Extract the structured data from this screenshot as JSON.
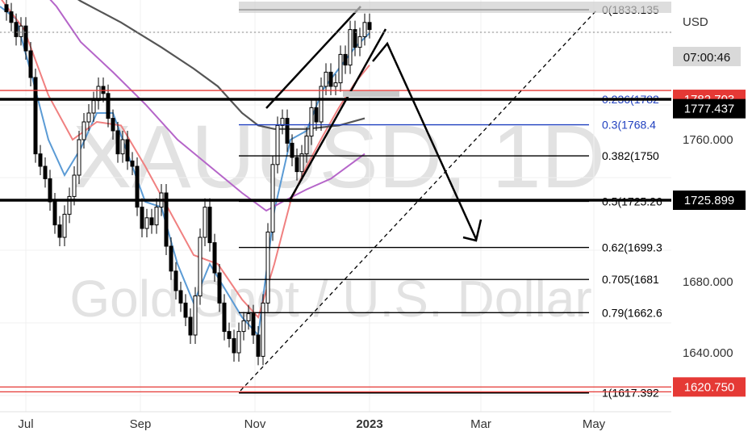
{
  "watermark": {
    "symbol": "XAUUSD, 1D",
    "description": "Gold Spot / U.S. Dollar"
  },
  "price_axis": {
    "currency": "USD",
    "countdown": "07:00:46"
  },
  "colors": {
    "candle": "#000000",
    "ma_blue": "#5b9bd5",
    "ma_red": "#f08080",
    "ma_purple": "#b565c9",
    "ma_gray": "#555555",
    "fib_blue": "#1f3fbf",
    "support_red": "#e53935",
    "dashed_trend": "#000000"
  },
  "chart_data": {
    "type": "candlestick",
    "title": "",
    "x_ticks": [
      "Jul",
      "Sep",
      "Nov",
      "2023",
      "Mar",
      "May"
    ],
    "y_ticks": [
      1640,
      1680,
      1760
    ],
    "ylim": [
      1612,
      1840
    ],
    "grid": true,
    "candles": [
      {
        "x": 8,
        "close": 1832
      },
      {
        "x": 14,
        "close": 1826
      },
      {
        "x": 20,
        "close": 1818
      },
      {
        "x": 26,
        "close": 1824
      },
      {
        "x": 32,
        "close": 1810
      },
      {
        "x": 38,
        "close": 1795
      },
      {
        "x": 44,
        "close": 1752
      },
      {
        "x": 50,
        "close": 1745
      },
      {
        "x": 56,
        "close": 1738
      },
      {
        "x": 62,
        "close": 1725
      },
      {
        "x": 68,
        "close": 1712
      },
      {
        "x": 74,
        "close": 1705
      },
      {
        "x": 80,
        "close": 1718
      },
      {
        "x": 86,
        "close": 1728
      },
      {
        "x": 92,
        "close": 1740
      },
      {
        "x": 98,
        "close": 1760
      },
      {
        "x": 104,
        "close": 1770
      },
      {
        "x": 110,
        "close": 1775
      },
      {
        "x": 116,
        "close": 1782
      },
      {
        "x": 122,
        "close": 1790
      },
      {
        "x": 128,
        "close": 1786
      },
      {
        "x": 134,
        "close": 1772
      },
      {
        "x": 140,
        "close": 1765
      },
      {
        "x": 146,
        "close": 1752
      },
      {
        "x": 152,
        "close": 1760
      },
      {
        "x": 158,
        "close": 1748
      },
      {
        "x": 164,
        "close": 1745
      },
      {
        "x": 170,
        "close": 1722
      },
      {
        "x": 176,
        "close": 1710
      },
      {
        "x": 182,
        "close": 1716
      },
      {
        "x": 188,
        "close": 1712
      },
      {
        "x": 194,
        "close": 1722
      },
      {
        "x": 200,
        "close": 1730
      },
      {
        "x": 206,
        "close": 1700
      },
      {
        "x": 212,
        "close": 1686
      },
      {
        "x": 218,
        "close": 1675
      },
      {
        "x": 224,
        "close": 1668
      },
      {
        "x": 230,
        "close": 1660
      },
      {
        "x": 236,
        "close": 1650
      },
      {
        "x": 242,
        "close": 1672
      },
      {
        "x": 248,
        "close": 1705
      },
      {
        "x": 254,
        "close": 1722
      },
      {
        "x": 260,
        "close": 1702
      },
      {
        "x": 266,
        "close": 1685
      },
      {
        "x": 272,
        "close": 1668
      },
      {
        "x": 278,
        "close": 1652
      },
      {
        "x": 284,
        "close": 1648
      },
      {
        "x": 290,
        "close": 1640
      },
      {
        "x": 296,
        "close": 1652
      },
      {
        "x": 302,
        "close": 1658
      },
      {
        "x": 308,
        "close": 1662
      },
      {
        "x": 314,
        "close": 1650
      },
      {
        "x": 320,
        "close": 1638
      },
      {
        "x": 326,
        "close": 1668
      },
      {
        "x": 332,
        "close": 1708
      },
      {
        "x": 338,
        "close": 1746
      },
      {
        "x": 344,
        "close": 1768
      },
      {
        "x": 350,
        "close": 1772
      },
      {
        "x": 356,
        "close": 1758
      },
      {
        "x": 362,
        "close": 1750
      },
      {
        "x": 368,
        "close": 1742
      },
      {
        "x": 374,
        "close": 1752
      },
      {
        "x": 380,
        "close": 1762
      },
      {
        "x": 386,
        "close": 1778
      },
      {
        "x": 392,
        "close": 1770
      },
      {
        "x": 398,
        "close": 1790
      },
      {
        "x": 404,
        "close": 1798
      },
      {
        "x": 410,
        "close": 1790
      },
      {
        "x": 416,
        "close": 1792
      },
      {
        "x": 422,
        "close": 1808
      },
      {
        "x": 428,
        "close": 1802
      },
      {
        "x": 434,
        "close": 1822
      },
      {
        "x": 440,
        "close": 1812
      },
      {
        "x": 446,
        "close": 1818
      },
      {
        "x": 452,
        "close": 1826
      },
      {
        "x": 458,
        "close": 1822
      }
    ],
    "moving_averages": [
      {
        "color": "#5b9bd5",
        "points": [
          [
            0,
            1835
          ],
          [
            20,
            1828
          ],
          [
            40,
            1795
          ],
          [
            60,
            1760
          ],
          [
            80,
            1740
          ],
          [
            100,
            1755
          ],
          [
            120,
            1775
          ],
          [
            140,
            1775
          ],
          [
            160,
            1750
          ],
          [
            180,
            1725
          ],
          [
            200,
            1722
          ],
          [
            220,
            1690
          ],
          [
            240,
            1668
          ],
          [
            260,
            1690
          ],
          [
            280,
            1675
          ],
          [
            300,
            1660
          ],
          [
            320,
            1650
          ],
          [
            340,
            1720
          ],
          [
            360,
            1760
          ],
          [
            380,
            1765
          ],
          [
            400,
            1788
          ],
          [
            420,
            1800
          ],
          [
            440,
            1812
          ],
          [
            458,
            1820
          ]
        ]
      },
      {
        "color": "#f08080",
        "points": [
          [
            0,
            1840
          ],
          [
            30,
            1822
          ],
          [
            60,
            1785
          ],
          [
            90,
            1760
          ],
          [
            120,
            1770
          ],
          [
            150,
            1768
          ],
          [
            180,
            1745
          ],
          [
            210,
            1720
          ],
          [
            240,
            1695
          ],
          [
            270,
            1690
          ],
          [
            300,
            1670
          ],
          [
            320,
            1660
          ],
          [
            340,
            1690
          ],
          [
            360,
            1725
          ],
          [
            380,
            1745
          ],
          [
            400,
            1762
          ],
          [
            420,
            1778
          ],
          [
            440,
            1792
          ],
          [
            458,
            1802
          ]
        ]
      },
      {
        "color": "#b565c9",
        "points": [
          [
            40,
            1850
          ],
          [
            70,
            1835
          ],
          [
            100,
            1815
          ],
          [
            140,
            1798
          ],
          [
            180,
            1780
          ],
          [
            220,
            1760
          ],
          [
            260,
            1745
          ],
          [
            300,
            1730
          ],
          [
            330,
            1720
          ],
          [
            350,
            1725
          ],
          [
            380,
            1732
          ],
          [
            410,
            1738
          ],
          [
            440,
            1748
          ],
          [
            452,
            1752
          ]
        ]
      },
      {
        "color": "#555555",
        "points": [
          [
            60,
            1850
          ],
          [
            100,
            1838
          ],
          [
            150,
            1826
          ],
          [
            200,
            1812
          ],
          [
            240,
            1800
          ],
          [
            270,
            1790
          ],
          [
            300,
            1775
          ],
          [
            320,
            1768
          ],
          [
            340,
            1766
          ],
          [
            380,
            1766
          ],
          [
            420,
            1768
          ],
          [
            452,
            1772
          ]
        ]
      }
    ],
    "fibonacci_levels": [
      {
        "label": "0(1833.135",
        "price": 1833.135
      },
      {
        "label": "0.236(1782",
        "price": 1782.703
      },
      {
        "label": "0.3(1768.4",
        "price": 1768.4
      },
      {
        "label": "0.382(1750",
        "price": 1750.9
      },
      {
        "label": "0.5(1725.26",
        "price": 1725.26
      },
      {
        "label": "0.62(1699.3",
        "price": 1699.3
      },
      {
        "label": "0.705(1681",
        "price": 1681.3
      },
      {
        "label": "0.79(1662.6",
        "price": 1662.6
      },
      {
        "label": "1(1617.392",
        "price": 1617.392
      }
    ],
    "horizontal_lines": [
      {
        "price": 1782.703,
        "style": "thick-black"
      },
      {
        "price": 1725.899,
        "style": "thick-black"
      },
      {
        "price": 1620.75,
        "style": "thin-red"
      }
    ],
    "price_labels": [
      {
        "text": "1782.703",
        "price": 1782.703,
        "bg": "#e53935",
        "fg": "#ffffff"
      },
      {
        "text": "1777.437",
        "price": 1777.437,
        "bg": "#000000",
        "fg": "#ffffff"
      },
      {
        "text": "1725.899",
        "price": 1725.899,
        "bg": "#000000",
        "fg": "#ffffff"
      },
      {
        "text": "1620.750",
        "price": 1620.75,
        "bg": "#e53935",
        "fg": "#ffffff"
      }
    ],
    "axis_tick_labels": [
      {
        "text": "1680.000",
        "price": 1680
      },
      {
        "text": "1640.000",
        "price": 1640
      },
      {
        "text": "1760.000",
        "price": 1760
      }
    ]
  }
}
